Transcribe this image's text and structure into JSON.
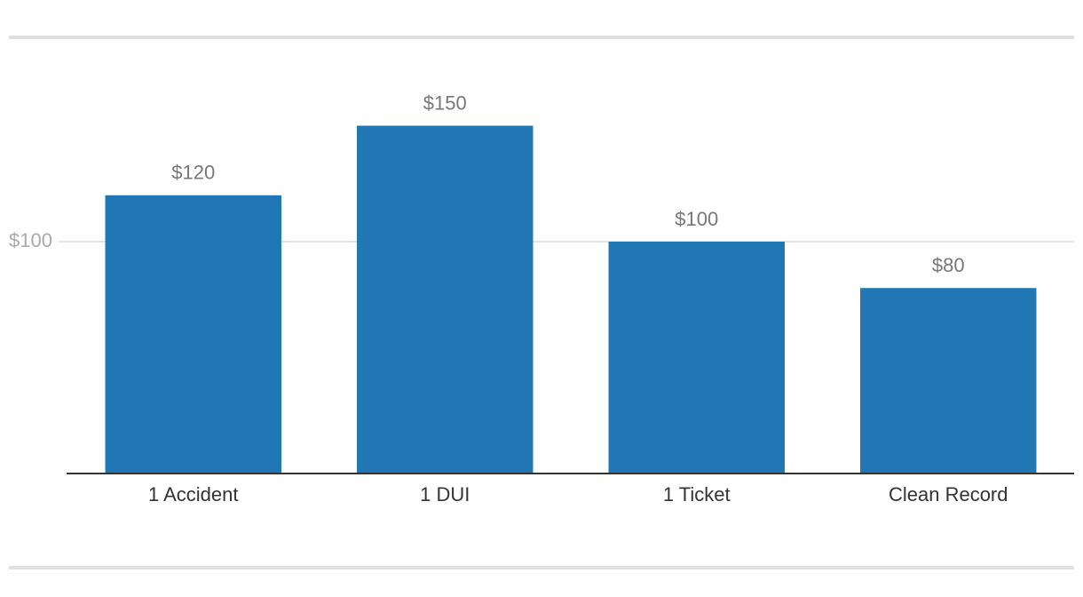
{
  "chart_data": {
    "type": "bar",
    "categories": [
      "1 Accident",
      "1 DUI",
      "1 Ticket",
      "Clean Record"
    ],
    "values": [
      120,
      150,
      100,
      80
    ],
    "value_labels": [
      "$120",
      "$150",
      "$100",
      "$80"
    ],
    "color": "#2077b4",
    "ylim": [
      0,
      150
    ],
    "yticks": [
      {
        "value": 100,
        "label": "$100"
      }
    ],
    "grid": true
  }
}
